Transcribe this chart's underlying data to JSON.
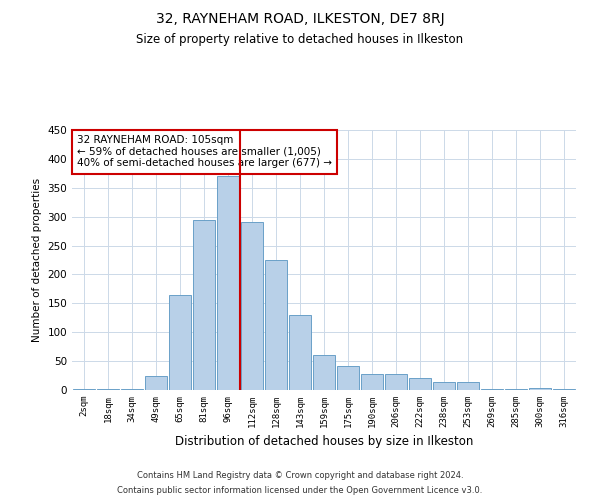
{
  "title1": "32, RAYNEHAM ROAD, ILKESTON, DE7 8RJ",
  "title2": "Size of property relative to detached houses in Ilkeston",
  "xlabel": "Distribution of detached houses by size in Ilkeston",
  "ylabel": "Number of detached properties",
  "categories": [
    "2sqm",
    "18sqm",
    "34sqm",
    "49sqm",
    "65sqm",
    "81sqm",
    "96sqm",
    "112sqm",
    "128sqm",
    "143sqm",
    "159sqm",
    "175sqm",
    "190sqm",
    "206sqm",
    "222sqm",
    "238sqm",
    "253sqm",
    "269sqm",
    "285sqm",
    "300sqm",
    "316sqm"
  ],
  "values": [
    2,
    2,
    2,
    25,
    165,
    295,
    370,
    290,
    225,
    130,
    60,
    42,
    27,
    27,
    20,
    13,
    13,
    2,
    2,
    3,
    2
  ],
  "bar_color": "#b8d0e8",
  "bar_edge_color": "#6aa0c8",
  "vline_x": 6.5,
  "vline_color": "#cc0000",
  "annotation_title": "32 RAYNEHAM ROAD: 105sqm",
  "annotation_line1": "← 59% of detached houses are smaller (1,005)",
  "annotation_line2": "40% of semi-detached houses are larger (677) →",
  "annotation_box_color": "#ffffff",
  "annotation_box_edge": "#cc0000",
  "ylim": [
    0,
    450
  ],
  "yticks": [
    0,
    50,
    100,
    150,
    200,
    250,
    300,
    350,
    400,
    450
  ],
  "footer1": "Contains HM Land Registry data © Crown copyright and database right 2024.",
  "footer2": "Contains public sector information licensed under the Open Government Licence v3.0.",
  "bg_color": "#ffffff",
  "grid_color": "#ccd9e8"
}
